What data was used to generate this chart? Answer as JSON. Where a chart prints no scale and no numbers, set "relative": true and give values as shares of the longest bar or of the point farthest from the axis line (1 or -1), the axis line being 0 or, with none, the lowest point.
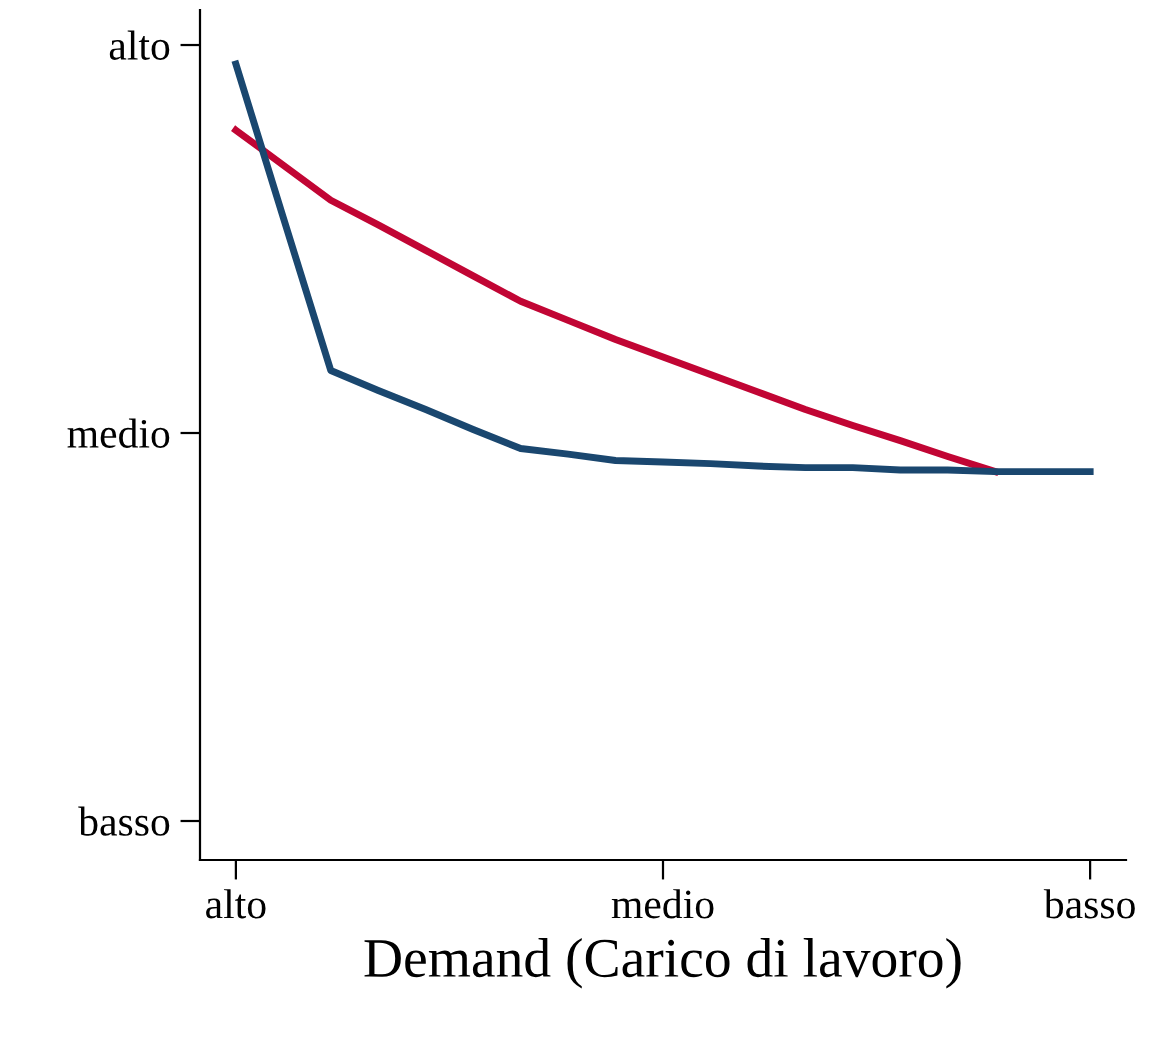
{
  "chart_data": {
    "type": "line",
    "xlabel": "Demand (Carico di lavoro)",
    "relative": true,
    "categories": [
      "alto",
      null,
      null,
      null,
      null,
      null,
      null,
      null,
      null,
      "medio",
      null,
      null,
      null,
      null,
      null,
      null,
      null,
      null,
      "basso"
    ],
    "annotations": [
      "basso",
      "medio",
      "alto"
    ],
    "grid": false,
    "legend": false,
    "marker": "none",
    "line_style": "solid",
    "series": [
      {
        "color": "#c10534",
        "values": [
          0.917,
          0.873,
          0.829,
          0.798,
          0.766,
          0.734,
          0.702,
          0.678,
          0.654,
          0.632,
          0.61,
          0.588,
          0.566,
          0.546,
          0.527,
          0.507,
          0.488,
          null,
          null
        ]
      },
      {
        "color": "#1a476f",
        "values": [
          1.0,
          0.807,
          0.615,
          0.59,
          0.566,
          0.541,
          0.517,
          0.51,
          0.502,
          0.5,
          0.498,
          0.495,
          0.493,
          0.493,
          0.49,
          0.49,
          0.488,
          0.488,
          0.488
        ]
      }
    ]
  }
}
